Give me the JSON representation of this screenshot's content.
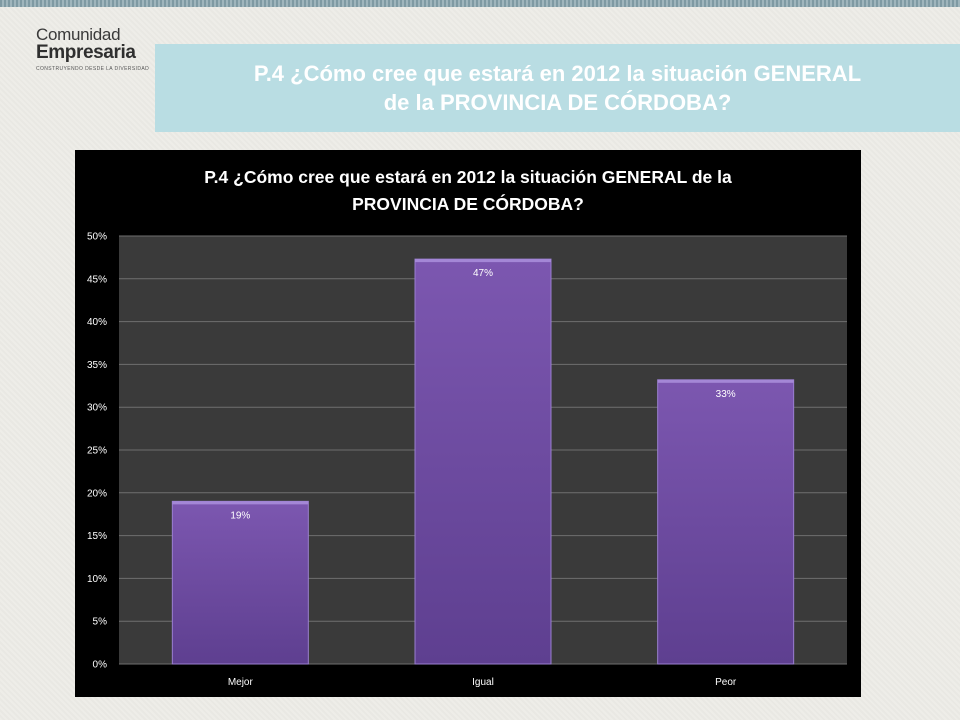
{
  "logo": {
    "line1": "Comunidad",
    "line2": "Empresaria",
    "tagline": "CONSTRUYENDO DESDE LA DIVERSIDAD"
  },
  "slide_title": "P.4 ¿Cómo cree que estará en 2012 la situación GENERAL de la PROVINCIA DE CÓRDOBA?",
  "chart_data": {
    "type": "bar",
    "title": "P.4 ¿Cómo cree que estará en 2012 la situación GENERAL de la PROVINCIA DE CÓRDOBA?",
    "categories": [
      "Mejor",
      "Igual",
      "Peor"
    ],
    "values": [
      19,
      47,
      33
    ],
    "data_labels": [
      "19%",
      "47%",
      "33%"
    ],
    "actual_values_estimated": [
      19.0,
      47.3,
      33.2
    ],
    "ylim": [
      0,
      50
    ],
    "yticks": [
      "0%",
      "5%",
      "10%",
      "15%",
      "20%",
      "25%",
      "30%",
      "35%",
      "40%",
      "45%",
      "50%"
    ],
    "xlabel": "",
    "ylabel": "",
    "grid": true,
    "legend": "none",
    "colors": {
      "bar": "#7c57b0",
      "bar_dark": "#5e3f90",
      "plot_bg": "#3a3a3a",
      "chart_bg": "#000000",
      "grid": "#6f6f6f"
    }
  }
}
